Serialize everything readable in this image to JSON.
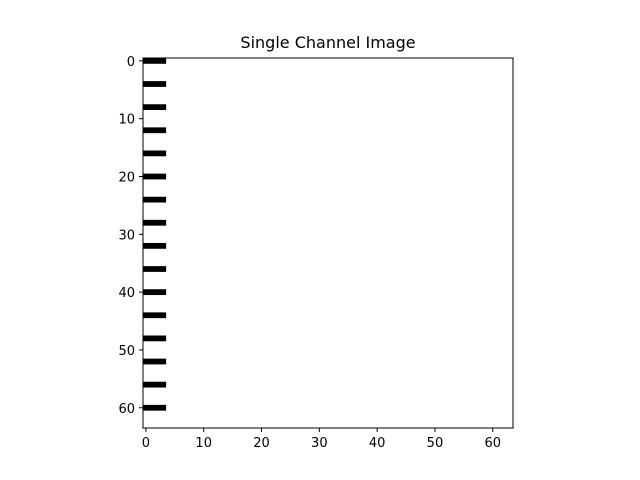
{
  "chart_data": {
    "type": "heatmap",
    "title": "Single Channel Image",
    "xlabel": "",
    "ylabel": "",
    "image_size": [
      64,
      64
    ],
    "xlim": [
      -0.5,
      63.5
    ],
    "ylim": [
      63.5,
      -0.5
    ],
    "x_ticks": [
      0,
      10,
      20,
      30,
      40,
      50,
      60
    ],
    "y_ticks": [
      0,
      10,
      20,
      30,
      40,
      50,
      60
    ],
    "colormap": "gray",
    "background_value": "white",
    "grid": false,
    "dark_pixels": {
      "columns": [
        0,
        1,
        2,
        3
      ],
      "rows": [
        0,
        4,
        8,
        12,
        16,
        20,
        24,
        28,
        32,
        36,
        40,
        44,
        48,
        52,
        56,
        60
      ]
    },
    "colors": {
      "dark": "#000000",
      "light": "#ffffff"
    }
  }
}
